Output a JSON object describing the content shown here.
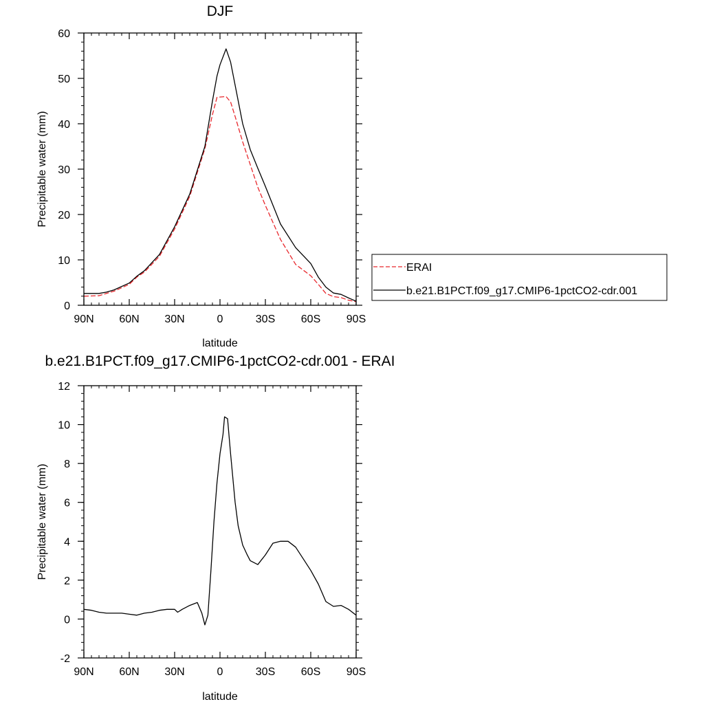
{
  "chart_data": [
    {
      "type": "line",
      "title": "DJF",
      "xlabel": "latitude",
      "ylabel": "Precipitable water (mm)",
      "xlim": [
        -90,
        90
      ],
      "ylim": [
        0,
        60
      ],
      "x_ticks": [
        {
          "value": -90,
          "label": "90N"
        },
        {
          "value": -60,
          "label": "60N"
        },
        {
          "value": -30,
          "label": "30N"
        },
        {
          "value": 0,
          "label": "0"
        },
        {
          "value": 30,
          "label": "30S"
        },
        {
          "value": 60,
          "label": "60S"
        },
        {
          "value": 90,
          "label": "90S"
        }
      ],
      "y_ticks": [
        0,
        10,
        20,
        30,
        40,
        50,
        60
      ],
      "legend_position": "right",
      "x": [
        -90,
        -80,
        -75,
        -70,
        -60,
        -55,
        -50,
        -40,
        -30,
        -20,
        -10,
        -5,
        -2,
        0,
        4,
        7,
        10,
        15,
        20,
        25,
        30,
        40,
        50,
        60,
        65,
        70,
        75,
        80,
        85,
        90
      ],
      "series": [
        {
          "name": "ERAI",
          "color": "#e8262b",
          "dashed": true,
          "values": [
            2.0,
            2.1,
            2.6,
            3.1,
            4.6,
            6.2,
            7.3,
            10.8,
            16.8,
            24.0,
            34.5,
            42.0,
            45.8,
            45.9,
            46.0,
            44.8,
            41.6,
            36.0,
            31.0,
            26.0,
            22.0,
            14.5,
            9.0,
            6.5,
            4.6,
            2.6,
            1.9,
            1.7,
            1.1,
            0.8
          ]
        },
        {
          "name": "b.e21.B1PCT.f09_g17.CMIP6-1pctCO2-cdr.001",
          "color": "#000000",
          "dashed": false,
          "values": [
            2.6,
            2.6,
            2.9,
            3.4,
            4.9,
            6.4,
            7.6,
            11.2,
            17.3,
            24.5,
            35.0,
            45.0,
            50.5,
            53.0,
            56.5,
            53.6,
            48.5,
            40.0,
            34.3,
            30.2,
            26.2,
            17.9,
            12.7,
            9.2,
            6.2,
            4.0,
            2.7,
            2.4,
            1.6,
            0.9
          ]
        }
      ]
    },
    {
      "type": "line",
      "title": "b.e21.B1PCT.f09_g17.CMIP6-1pctCO2-cdr.001 - ERAI",
      "xlabel": "latitude",
      "ylabel": "Precipitable water (mm)",
      "xlim": [
        -90,
        90
      ],
      "ylim": [
        -2,
        12
      ],
      "x_ticks": [
        {
          "value": -90,
          "label": "90N"
        },
        {
          "value": -60,
          "label": "60N"
        },
        {
          "value": -30,
          "label": "30N"
        },
        {
          "value": 0,
          "label": "0"
        },
        {
          "value": 30,
          "label": "30S"
        },
        {
          "value": 60,
          "label": "60S"
        },
        {
          "value": 90,
          "label": "90S"
        }
      ],
      "y_ticks": [
        -2,
        0,
        2,
        4,
        6,
        8,
        10,
        12
      ],
      "x": [
        -90,
        -85,
        -80,
        -75,
        -70,
        -65,
        -60,
        -55,
        -50,
        -45,
        -40,
        -35,
        -30,
        -28,
        -25,
        -20,
        -15,
        -12,
        -10,
        -8,
        -6,
        -4,
        -2,
        0,
        2,
        3,
        5,
        7,
        10,
        12,
        15,
        18,
        20,
        25,
        30,
        35,
        40,
        45,
        50,
        55,
        60,
        65,
        70,
        75,
        80,
        85,
        90
      ],
      "series": [
        {
          "name": "",
          "color": "#000000",
          "dashed": false,
          "values": [
            0.5,
            0.45,
            0.35,
            0.3,
            0.3,
            0.3,
            0.25,
            0.2,
            0.3,
            0.35,
            0.45,
            0.5,
            0.5,
            0.35,
            0.5,
            0.7,
            0.85,
            0.3,
            -0.3,
            0.2,
            2.5,
            5.0,
            7.0,
            8.5,
            9.5,
            10.4,
            10.3,
            8.5,
            6.0,
            4.8,
            3.8,
            3.3,
            3.0,
            2.8,
            3.3,
            3.9,
            4.0,
            4.0,
            3.7,
            3.1,
            2.5,
            1.8,
            0.9,
            0.65,
            0.7,
            0.5,
            0.2
          ]
        }
      ]
    }
  ]
}
